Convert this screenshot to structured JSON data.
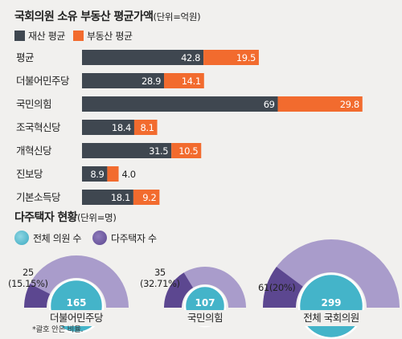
{
  "colors": {
    "asset": "#3f4750",
    "realestate": "#f26b2e",
    "total_gauge": "#a99ccb",
    "multi_gauge": "#5c4790",
    "inner_circle": "#44b4c9"
  },
  "assets": {
    "title": "국회의원 소유 부동산 평균가액",
    "unit": "(단위=억원)",
    "legend": {
      "asset": "재산 평균",
      "realestate": "부동산 평균"
    }
  },
  "housing": {
    "title": "다주택자 현황",
    "unit": "(단위=명)",
    "legend": {
      "total": "전체 의원 수",
      "multi": "다주택자 수"
    },
    "footnote": "*괄호 안은 비율."
  },
  "chart_data": [
    {
      "type": "bar",
      "orientation": "horizontal",
      "stacked": true,
      "categories": [
        "평균",
        "더불어민주당",
        "국민의힘",
        "조국혁신당",
        "개혁신당",
        "진보당",
        "기본소득당"
      ],
      "series": [
        {
          "name": "재산 평균",
          "values": [
            42.8,
            28.9,
            69,
            18.4,
            31.5,
            8.9,
            18.1
          ],
          "labels": [
            "42.8",
            "28.9",
            "69",
            "18.4",
            "31.5",
            "8.9",
            "18.1"
          ]
        },
        {
          "name": "부동산 평균",
          "values": [
            19.5,
            14.1,
            29.8,
            8.1,
            10.5,
            4.0,
            9.2
          ],
          "labels": [
            "19.5",
            "14.1",
            "29.8",
            "8.1",
            "10.5",
            "4.0",
            "9.2"
          ]
        }
      ],
      "title": "국회의원 소유 부동산 평균가액",
      "unit": "(단위=억원)"
    },
    {
      "type": "gauge",
      "title": "다주택자 현황",
      "unit": "(단위=명)",
      "groups": [
        {
          "name": "더불어민주당",
          "total": 165,
          "multi": 25,
          "multi_label": "25\n(15.15%)"
        },
        {
          "name": "국민의힘",
          "total": 107,
          "multi": 35,
          "multi_label": "35\n(32.71%)"
        },
        {
          "name": "전체 국회의원",
          "total": 299,
          "multi": 61,
          "multi_label": "61(20%)"
        }
      ]
    }
  ]
}
